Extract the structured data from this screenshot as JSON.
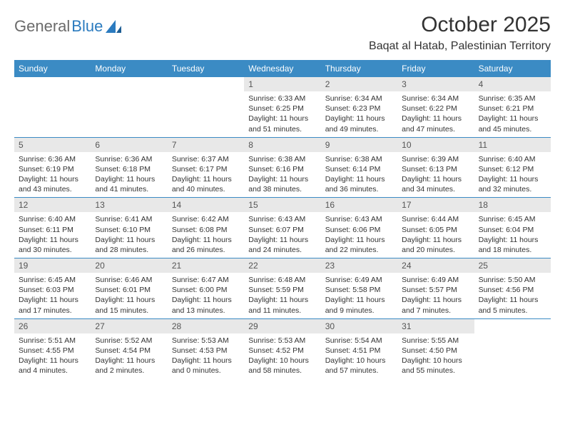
{
  "brand": {
    "part1": "General",
    "part2": "Blue"
  },
  "title": "October 2025",
  "location": "Baqat al Hatab, Palestinian Territory",
  "colors": {
    "header_bg": "#3b8bc4",
    "header_text": "#ffffff",
    "daynum_bg": "#e8e8e8",
    "week_divider": "#3b8bc4",
    "brand_gray": "#6b6b6b",
    "brand_blue": "#2b7bbf"
  },
  "day_names": [
    "Sunday",
    "Monday",
    "Tuesday",
    "Wednesday",
    "Thursday",
    "Friday",
    "Saturday"
  ],
  "weeks": [
    [
      null,
      null,
      null,
      {
        "n": "1",
        "sr": "Sunrise: 6:33 AM",
        "ss": "Sunset: 6:25 PM",
        "d1": "Daylight: 11 hours",
        "d2": "and 51 minutes."
      },
      {
        "n": "2",
        "sr": "Sunrise: 6:34 AM",
        "ss": "Sunset: 6:23 PM",
        "d1": "Daylight: 11 hours",
        "d2": "and 49 minutes."
      },
      {
        "n": "3",
        "sr": "Sunrise: 6:34 AM",
        "ss": "Sunset: 6:22 PM",
        "d1": "Daylight: 11 hours",
        "d2": "and 47 minutes."
      },
      {
        "n": "4",
        "sr": "Sunrise: 6:35 AM",
        "ss": "Sunset: 6:21 PM",
        "d1": "Daylight: 11 hours",
        "d2": "and 45 minutes."
      }
    ],
    [
      {
        "n": "5",
        "sr": "Sunrise: 6:36 AM",
        "ss": "Sunset: 6:19 PM",
        "d1": "Daylight: 11 hours",
        "d2": "and 43 minutes."
      },
      {
        "n": "6",
        "sr": "Sunrise: 6:36 AM",
        "ss": "Sunset: 6:18 PM",
        "d1": "Daylight: 11 hours",
        "d2": "and 41 minutes."
      },
      {
        "n": "7",
        "sr": "Sunrise: 6:37 AM",
        "ss": "Sunset: 6:17 PM",
        "d1": "Daylight: 11 hours",
        "d2": "and 40 minutes."
      },
      {
        "n": "8",
        "sr": "Sunrise: 6:38 AM",
        "ss": "Sunset: 6:16 PM",
        "d1": "Daylight: 11 hours",
        "d2": "and 38 minutes."
      },
      {
        "n": "9",
        "sr": "Sunrise: 6:38 AM",
        "ss": "Sunset: 6:14 PM",
        "d1": "Daylight: 11 hours",
        "d2": "and 36 minutes."
      },
      {
        "n": "10",
        "sr": "Sunrise: 6:39 AM",
        "ss": "Sunset: 6:13 PM",
        "d1": "Daylight: 11 hours",
        "d2": "and 34 minutes."
      },
      {
        "n": "11",
        "sr": "Sunrise: 6:40 AM",
        "ss": "Sunset: 6:12 PM",
        "d1": "Daylight: 11 hours",
        "d2": "and 32 minutes."
      }
    ],
    [
      {
        "n": "12",
        "sr": "Sunrise: 6:40 AM",
        "ss": "Sunset: 6:11 PM",
        "d1": "Daylight: 11 hours",
        "d2": "and 30 minutes."
      },
      {
        "n": "13",
        "sr": "Sunrise: 6:41 AM",
        "ss": "Sunset: 6:10 PM",
        "d1": "Daylight: 11 hours",
        "d2": "and 28 minutes."
      },
      {
        "n": "14",
        "sr": "Sunrise: 6:42 AM",
        "ss": "Sunset: 6:08 PM",
        "d1": "Daylight: 11 hours",
        "d2": "and 26 minutes."
      },
      {
        "n": "15",
        "sr": "Sunrise: 6:43 AM",
        "ss": "Sunset: 6:07 PM",
        "d1": "Daylight: 11 hours",
        "d2": "and 24 minutes."
      },
      {
        "n": "16",
        "sr": "Sunrise: 6:43 AM",
        "ss": "Sunset: 6:06 PM",
        "d1": "Daylight: 11 hours",
        "d2": "and 22 minutes."
      },
      {
        "n": "17",
        "sr": "Sunrise: 6:44 AM",
        "ss": "Sunset: 6:05 PM",
        "d1": "Daylight: 11 hours",
        "d2": "and 20 minutes."
      },
      {
        "n": "18",
        "sr": "Sunrise: 6:45 AM",
        "ss": "Sunset: 6:04 PM",
        "d1": "Daylight: 11 hours",
        "d2": "and 18 minutes."
      }
    ],
    [
      {
        "n": "19",
        "sr": "Sunrise: 6:45 AM",
        "ss": "Sunset: 6:03 PM",
        "d1": "Daylight: 11 hours",
        "d2": "and 17 minutes."
      },
      {
        "n": "20",
        "sr": "Sunrise: 6:46 AM",
        "ss": "Sunset: 6:01 PM",
        "d1": "Daylight: 11 hours",
        "d2": "and 15 minutes."
      },
      {
        "n": "21",
        "sr": "Sunrise: 6:47 AM",
        "ss": "Sunset: 6:00 PM",
        "d1": "Daylight: 11 hours",
        "d2": "and 13 minutes."
      },
      {
        "n": "22",
        "sr": "Sunrise: 6:48 AM",
        "ss": "Sunset: 5:59 PM",
        "d1": "Daylight: 11 hours",
        "d2": "and 11 minutes."
      },
      {
        "n": "23",
        "sr": "Sunrise: 6:49 AM",
        "ss": "Sunset: 5:58 PM",
        "d1": "Daylight: 11 hours",
        "d2": "and 9 minutes."
      },
      {
        "n": "24",
        "sr": "Sunrise: 6:49 AM",
        "ss": "Sunset: 5:57 PM",
        "d1": "Daylight: 11 hours",
        "d2": "and 7 minutes."
      },
      {
        "n": "25",
        "sr": "Sunrise: 5:50 AM",
        "ss": "Sunset: 4:56 PM",
        "d1": "Daylight: 11 hours",
        "d2": "and 5 minutes."
      }
    ],
    [
      {
        "n": "26",
        "sr": "Sunrise: 5:51 AM",
        "ss": "Sunset: 4:55 PM",
        "d1": "Daylight: 11 hours",
        "d2": "and 4 minutes."
      },
      {
        "n": "27",
        "sr": "Sunrise: 5:52 AM",
        "ss": "Sunset: 4:54 PM",
        "d1": "Daylight: 11 hours",
        "d2": "and 2 minutes."
      },
      {
        "n": "28",
        "sr": "Sunrise: 5:53 AM",
        "ss": "Sunset: 4:53 PM",
        "d1": "Daylight: 11 hours",
        "d2": "and 0 minutes."
      },
      {
        "n": "29",
        "sr": "Sunrise: 5:53 AM",
        "ss": "Sunset: 4:52 PM",
        "d1": "Daylight: 10 hours",
        "d2": "and 58 minutes."
      },
      {
        "n": "30",
        "sr": "Sunrise: 5:54 AM",
        "ss": "Sunset: 4:51 PM",
        "d1": "Daylight: 10 hours",
        "d2": "and 57 minutes."
      },
      {
        "n": "31",
        "sr": "Sunrise: 5:55 AM",
        "ss": "Sunset: 4:50 PM",
        "d1": "Daylight: 10 hours",
        "d2": "and 55 minutes."
      },
      null
    ]
  ]
}
